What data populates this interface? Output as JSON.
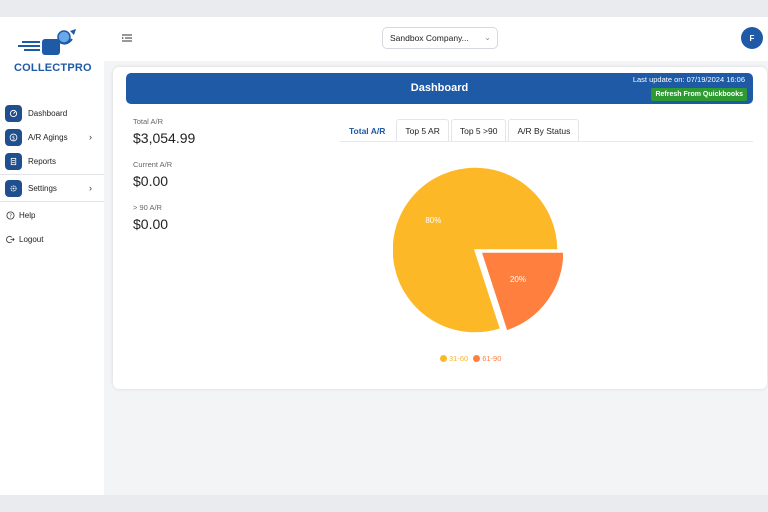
{
  "brand": {
    "logo_part1": "COLLECT",
    "logo_part2": "PRO",
    "accent": "#1f5aa6"
  },
  "sidebar": {
    "items": [
      {
        "label": "Dashboard",
        "icon": "dashboard-icon"
      },
      {
        "label": "A/R Agings",
        "icon": "dollar-icon",
        "expandable": true
      },
      {
        "label": "Reports",
        "icon": "report-icon"
      },
      {
        "label": "Settings",
        "icon": "gear-icon",
        "expandable": true
      },
      {
        "label": "Help",
        "icon": "help-icon"
      },
      {
        "label": "Logout",
        "icon": "logout-icon"
      }
    ]
  },
  "header": {
    "company_select": "Sandbox Company...",
    "avatar_initial": "F"
  },
  "banner": {
    "title": "Dashboard",
    "last_update": "Last update on: 07/19/2024 16:06",
    "refresh_label": "Refresh From Quickbooks"
  },
  "stats": [
    {
      "label": "Total A/R",
      "value": "$3,054.99"
    },
    {
      "label": "Current A/R",
      "value": "$0.00"
    },
    {
      "label": "> 90 A/R",
      "value": "$0.00"
    }
  ],
  "tabs": [
    {
      "label": "Total A/R",
      "active": true
    },
    {
      "label": "Top 5 AR",
      "active": false
    },
    {
      "label": "Top 5 >90",
      "active": false
    },
    {
      "label": "A/R By Status",
      "active": false
    }
  ],
  "chart_data": {
    "type": "pie",
    "categories": [
      "31-60",
      "61-90"
    ],
    "values": [
      80,
      20
    ],
    "labels": [
      "80%",
      "20%"
    ],
    "colors": [
      "#fdb827",
      "#ff7f3f"
    ],
    "legend": "bottom"
  }
}
